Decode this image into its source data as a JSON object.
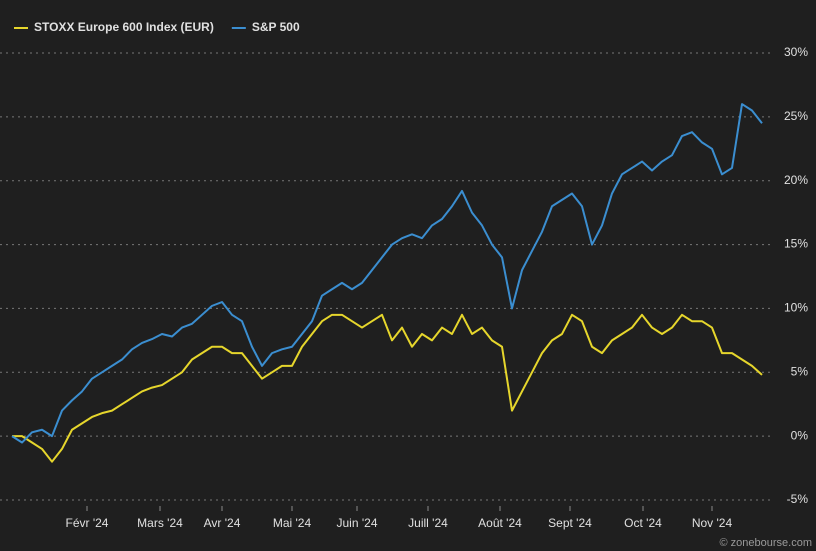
{
  "chart_data": {
    "type": "line",
    "legend": "top-left",
    "grid": true,
    "watermark": "© zonebourse.com",
    "xlim": [
      0,
      75
    ],
    "xticks": [
      {
        "value": 7.5,
        "label": "Févr '24"
      },
      {
        "value": 14.8,
        "label": "Mars '24"
      },
      {
        "value": 21,
        "label": "Avr '24"
      },
      {
        "value": 28,
        "label": "Mai '24"
      },
      {
        "value": 34.5,
        "label": "Juin '24"
      },
      {
        "value": 41.6,
        "label": "Juill '24"
      },
      {
        "value": 48.8,
        "label": "Août '24"
      },
      {
        "value": 55.8,
        "label": "Sept '24"
      },
      {
        "value": 63.1,
        "label": "Oct '24"
      },
      {
        "value": 70,
        "label": "Nov '24"
      }
    ],
    "ylim": [
      -5,
      30
    ],
    "yticks": [
      {
        "value": 30,
        "label": "30%"
      },
      {
        "value": 25,
        "label": "25%"
      },
      {
        "value": 20,
        "label": "20%"
      },
      {
        "value": 15,
        "label": "15%"
      },
      {
        "value": 10,
        "label": "10%"
      },
      {
        "value": 5,
        "label": "5%"
      },
      {
        "value": 0,
        "label": "0%"
      },
      {
        "value": -5,
        "label": "-5%"
      }
    ],
    "series": [
      {
        "name": "STOXX Europe 600 Index (EUR)",
        "color": "#e6d62c",
        "values": [
          0,
          0,
          -0.5,
          -1,
          -2,
          -1,
          0.5,
          1,
          1.5,
          1.8,
          2,
          2.5,
          3,
          3.5,
          3.8,
          4,
          4.5,
          5,
          6,
          6.5,
          7,
          7,
          6.5,
          6.5,
          5.5,
          4.5,
          5,
          5.5,
          5.5,
          7,
          8,
          9,
          9.5,
          9.5,
          9,
          8.5,
          9,
          9.5,
          7.5,
          8.5,
          7,
          8,
          7.5,
          8.5,
          8,
          9.5,
          8,
          8.5,
          7.5,
          7,
          2,
          3.5,
          5,
          6.5,
          7.5,
          8,
          9.5,
          9,
          7,
          6.5,
          7.5,
          8,
          8.5,
          9.5,
          8.5,
          8,
          8.5,
          9.5,
          9,
          9,
          8.5,
          6.5,
          6.5,
          6,
          5.5,
          4.8
        ]
      },
      {
        "name": "S&P 500",
        "color": "#3b8ed0",
        "values": [
          0,
          -0.5,
          0.3,
          0.5,
          0,
          2,
          2.8,
          3.5,
          4.5,
          5,
          5.5,
          6,
          6.8,
          7.3,
          7.6,
          8,
          7.8,
          8.5,
          8.8,
          9.5,
          10.2,
          10.5,
          9.5,
          9,
          7,
          5.5,
          6.5,
          6.8,
          7,
          8,
          9,
          11,
          11.5,
          12,
          11.5,
          12,
          13,
          14,
          15,
          15.5,
          15.8,
          15.5,
          16.5,
          17,
          18,
          19.2,
          17.5,
          16.5,
          15,
          14,
          10,
          13,
          14.5,
          16,
          18,
          18.5,
          19,
          18,
          15,
          16.5,
          19,
          20.5,
          21,
          21.5,
          20.8,
          21.5,
          22,
          23.5,
          23.8,
          23,
          22.5,
          20.5,
          21,
          26,
          25.5,
          24.5
        ]
      }
    ]
  }
}
